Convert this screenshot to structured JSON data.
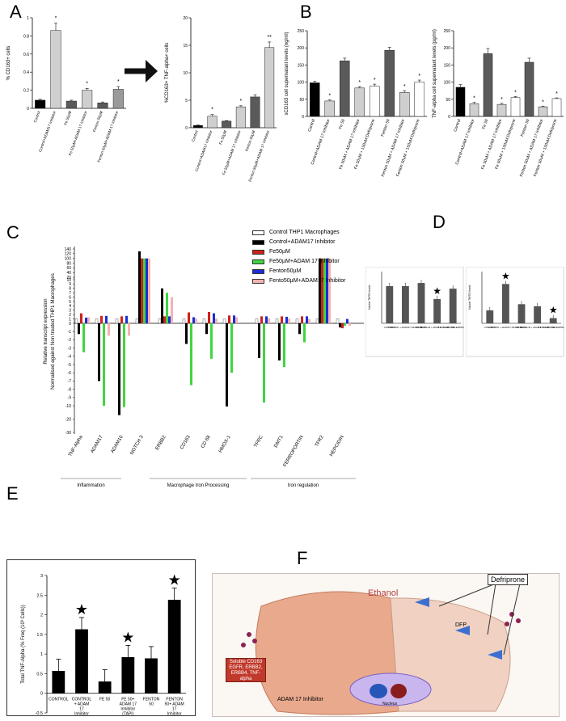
{
  "panels": {
    "A": "A",
    "B": "B",
    "C": "C",
    "D": "D",
    "E": "E",
    "F": "F"
  },
  "colors": {
    "black": "#000000",
    "lightgrey": "#cfcfcf",
    "darkgrey": "#5a5a5a",
    "red": "#d0201c",
    "green": "#3fd63f",
    "blue": "#1a2fd6",
    "pink": "#f4b3b3",
    "white": "#ffffff"
  },
  "chart_data": [
    {
      "id": "A1",
      "type": "bar",
      "ylabel": "% CD163+ cells",
      "ylim": [
        0,
        1
      ],
      "yticks": [
        "0",
        "0.2",
        "0.4",
        "0.6",
        "0.8",
        "1"
      ],
      "categories": [
        "Control",
        "Control+ADAM17 Inhibitor",
        "Fe 50µM",
        "Fe 50µM+ADAM 17 Inhibitor",
        "Fenton 50µM",
        "Fenton 50µM+ADAM 17 Inhibitor"
      ],
      "values": [
        0.09,
        0.86,
        0.08,
        0.2,
        0.06,
        0.21
      ],
      "errors": [
        0.01,
        0.08,
        0.01,
        0.02,
        0.01,
        0.03
      ],
      "colors": [
        "#000000",
        "#cfcfcf",
        "#5a5a5a",
        "#cfcfcf",
        "#5a5a5a",
        "#9a9a9a"
      ],
      "stars": [
        "",
        "*",
        "",
        "*",
        "",
        "*"
      ]
    },
    {
      "id": "A2",
      "type": "bar",
      "ylabel": "%CD163+ TNF-alpha+ cells",
      "ylim": [
        0,
        20
      ],
      "yticks": [
        "0",
        "5",
        "10",
        "15",
        "20"
      ],
      "categories": [
        "Control",
        "Control+ADAM17 Inhibitor",
        "Fe 50µM",
        "Fe 50µM+ADAM 17 Inhibitor",
        "Fenton 50µM",
        "Fenton 50µM+ADAM 17 Inhibitor"
      ],
      "values": [
        0.4,
        2.1,
        1.2,
        3.8,
        5.6,
        14.6
      ],
      "errors": [
        0.1,
        0.3,
        0.1,
        0.2,
        0.4,
        1.0
      ],
      "colors": [
        "#000000",
        "#cfcfcf",
        "#5a5a5a",
        "#cfcfcf",
        "#5a5a5a",
        "#cfcfcf"
      ],
      "stars": [
        "",
        "*",
        "",
        "*",
        "",
        "**"
      ]
    },
    {
      "id": "B1",
      "type": "bar",
      "ylabel": "sCD163 cell supernatant levels (ng/ml)",
      "ylim": [
        0,
        250
      ],
      "yticks": [
        "0",
        "50",
        "100",
        "150",
        "200",
        "250"
      ],
      "categories": [
        "Control",
        "Control+ADAM 17 Inhibitor",
        "Fe 50",
        "Fe 50uM + ADAM 17 Inhibitor",
        "Fe 50uM + 150uM Defriprone",
        "Fenton 50",
        "Fenton 50uM + ADAM 17 Inhibitor",
        "Fenton 50uM + 150uM Defriprone"
      ],
      "values": [
        98,
        45,
        162,
        83,
        88,
        193,
        70,
        100
      ],
      "errors": [
        5,
        3,
        8,
        4,
        6,
        9,
        5,
        6
      ],
      "colors": [
        "#000000",
        "#cfcfcf",
        "#5a5a5a",
        "#cfcfcf",
        "#ffffff",
        "#5a5a5a",
        "#cfcfcf",
        "#ffffff"
      ],
      "stars": [
        "",
        "*",
        "",
        "*",
        "*",
        "",
        "*",
        "*"
      ]
    },
    {
      "id": "B2",
      "type": "bar",
      "ylabel": "TNF-alpha cell supernatant levels (pg/ml)",
      "ylim": [
        0,
        250
      ],
      "yticks": [
        "0",
        "50",
        "100",
        "150",
        "200",
        "250"
      ],
      "categories": [
        "Control",
        "Control+ADAM 17 Inhibitor",
        "Fe 50",
        "Fe 50uM + ADAM 17 Inhibitor",
        "Fe 50uM + 150uM Defriprone",
        "Fenton 50",
        "Fenton 50uM + ADAM 17 Inhibitor",
        "Fenton 50uM + 150uM Defriprone"
      ],
      "values": [
        85,
        37,
        183,
        35,
        55,
        158,
        28,
        52
      ],
      "errors": [
        8,
        4,
        15,
        3,
        3,
        12,
        2,
        2
      ],
      "colors": [
        "#000000",
        "#cfcfcf",
        "#5a5a5a",
        "#cfcfcf",
        "#ffffff",
        "#5a5a5a",
        "#cfcfcf",
        "#ffffff"
      ],
      "stars": [
        "",
        "*",
        "",
        "*",
        "*",
        "",
        "*",
        "*"
      ]
    },
    {
      "id": "C",
      "type": "bar",
      "ylabel": "Relative transcript expression Normalised against Non treated THP1 Macrophages",
      "yticks": [
        "-30",
        "-20",
        "-10",
        "-9",
        "-8",
        "-7",
        "-6",
        "-5",
        "-4",
        "-3",
        "-2",
        "-1",
        "0",
        "1",
        "2",
        "3",
        "4",
        "5",
        "6",
        "7",
        "8",
        "9",
        "10",
        "20",
        "40",
        "60",
        "80",
        "100",
        "120",
        "140"
      ],
      "categories": [
        "TNF-Alpha",
        "ADAM17",
        "ADAM10",
        "NOTCH 3",
        "ERBB2",
        "CD163",
        "CD 68",
        "HMOX-1",
        "TFRC",
        "DMT1",
        "FERROPORTIN",
        "TFR2",
        "HEPCIDIN"
      ],
      "series": [
        {
          "name": "Control THP1 Macrophages",
          "values": [
            1,
            1,
            1,
            1,
            1,
            1,
            1,
            1,
            1,
            1,
            1,
            1,
            1
          ]
        },
        {
          "name": "Control+ADAM17 Inhibitor",
          "values": [
            -1.3,
            -7,
            -17,
            130,
            8,
            -2.5,
            -1.3,
            -10.5,
            -4.2,
            -4.5,
            -1.3,
            100,
            -0.5
          ]
        },
        {
          "name": "Fe50µM",
          "values": [
            2.3,
            1.7,
            1.6,
            100,
            1.6,
            2.5,
            2.6,
            1.8,
            1.6,
            1.6,
            1.6,
            100,
            -0.6
          ]
        },
        {
          "name": "Fe50µM+ADAM 17 Inhibitor",
          "values": [
            -3.5,
            -10,
            -11,
            100,
            7,
            -7.5,
            -4.3,
            -6,
            -9.6,
            -5.3,
            -2.3,
            100,
            -0.3
          ]
        },
        {
          "name": "Fenton50µM",
          "values": [
            1.3,
            1.7,
            1.7,
            100,
            1.6,
            1.4,
            2.3,
            1.8,
            1.6,
            1.5,
            1.6,
            100,
            1
          ]
        },
        {
          "name": "Fento50µM+ADAM17 Inhibitor",
          "values": [
            1.4,
            -1.5,
            -1.5,
            100,
            6,
            1.1,
            1.1,
            1.4,
            1.2,
            1.1,
            1.0,
            100,
            -0.3
          ]
        }
      ],
      "groups": [
        "Inflammation",
        "Macrophage Iron Processing",
        "Iron regulation"
      ]
    },
    {
      "id": "D1",
      "type": "bar",
      "ylabel": "Soluble TNFR1 levels",
      "categories": [
        "CONTROL",
        "CONTROL + ADAM17 INHIBITOR",
        "FE 50 mM",
        "FE 50 mM + ADAM 17 INHIBITOR",
        "FE 50 mM + DEFERIPRONE"
      ],
      "values": [
        0.72,
        0.72,
        0.78,
        0.47,
        0.67
      ],
      "stars": [
        "",
        "",
        "",
        "★",
        ""
      ]
    },
    {
      "id": "D2",
      "type": "bar",
      "ylabel": "Soluble TNFR2 levels",
      "categories": [
        "CONTROL",
        "CONTROL + ADAM17 INHIBITOR",
        "FE 50 mM",
        "FE 50 mM + ADAM 17 INHIBITOR",
        "FE 50 mM + DEFERIPRONE"
      ],
      "values": [
        0.25,
        0.76,
        0.37,
        0.33,
        0.1
      ],
      "stars": [
        "",
        "★",
        "",
        "",
        "★"
      ]
    },
    {
      "id": "E",
      "type": "bar",
      "ylabel": "Total TNF-Alpha (% Freq (10³ Cells))",
      "ylim": [
        -0.5,
        3
      ],
      "yticks": [
        "-0.5",
        "0",
        "0.5",
        "1",
        "1.5",
        "2",
        "2.5",
        "3"
      ],
      "categories": [
        "CONTROL",
        "CONTROL + ADAM 17 Inhibitor (TAPI)",
        "FE 50",
        "FE 50+ ADAM 17 Inhibitor (TAPI)",
        "FENTON 50",
        "FENTON 50+ ADAM 17 Inhibitor (TAPI)"
      ],
      "values": [
        0.57,
        1.63,
        0.3,
        0.92,
        0.89,
        2.38
      ],
      "errors": [
        0.3,
        0.3,
        0.3,
        0.3,
        0.3,
        0.3
      ],
      "stars": [
        "",
        "★",
        "",
        "★",
        "",
        "★"
      ]
    }
  ],
  "schematic": {
    "ethanol": "Ethanol",
    "defriprone": "Defriprone",
    "dfp": "DFP",
    "adam17": "ADAM 17 Inhibitor",
    "nucleus": "Nucleus",
    "soluble": "Soluble CD163 EGFR, ERBB2, ERBB4, TNF-alpha"
  }
}
